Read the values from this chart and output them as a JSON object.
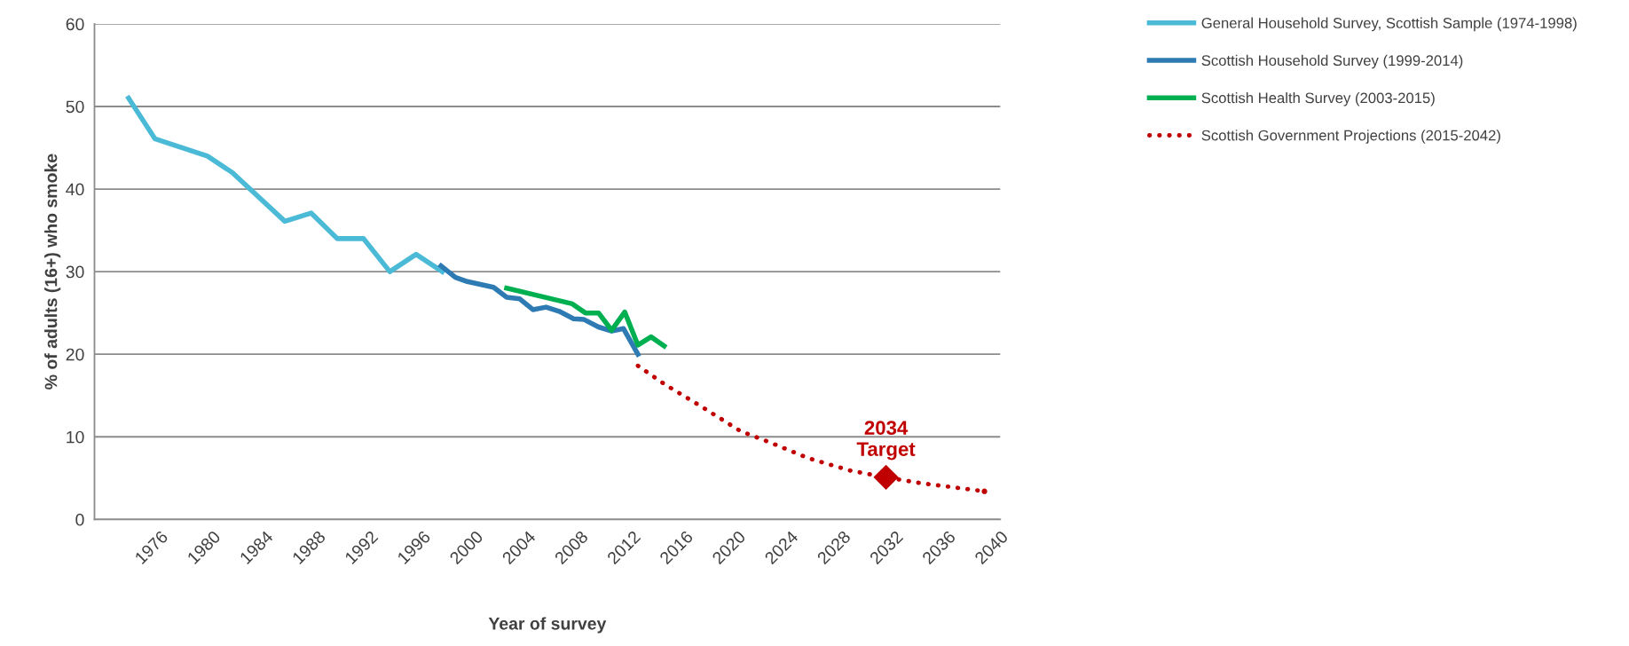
{
  "chart_data": {
    "type": "line",
    "xlabel": "Year of survey",
    "ylabel": "% of adults (16+) who smoke",
    "xlim": [
      1971,
      2040
    ],
    "xticks": [
      1976,
      1980,
      1984,
      1988,
      1992,
      1996,
      2000,
      2004,
      2008,
      2012,
      2016,
      2020,
      2024,
      2028,
      2032,
      2036,
      2040
    ],
    "ylim": [
      0,
      60
    ],
    "yticks": [
      0,
      10,
      20,
      30,
      40,
      50,
      60
    ],
    "grid": "y",
    "legend": "right",
    "marker": "none",
    "line_style": "solid",
    "series": [
      {
        "name": "General Household Survey, Scottish Sample (1974-1998)",
        "color": "#4bbad6",
        "x": [
          1973.6,
          1975.6,
          1979.6,
          1981.5,
          1985.5,
          1987.5,
          1989.5,
          1991.5,
          1993.5,
          1995.5,
          1997.5
        ],
        "values": [
          51.0,
          46.1,
          44.0,
          42.0,
          36.1,
          37.1,
          34.0,
          34.0,
          30.0,
          32.1,
          30.0
        ]
      },
      {
        "name": "Scottish Household Survey (1999-2014)",
        "color": "#2e7bb4",
        "x": [
          1997.4,
          1998.5,
          1999.4,
          2001.4,
          2002.4,
          2003.4,
          2004.4,
          2005.4,
          2006.4,
          2007.5,
          2008.3,
          2009.4,
          2010.4,
          2011.3,
          2012.4
        ],
        "values": [
          30.7,
          29.3,
          28.8,
          28.1,
          26.9,
          26.7,
          25.4,
          25.7,
          25.2,
          24.3,
          24.2,
          23.3,
          22.8,
          23.1,
          20.0
        ]
      },
      {
        "name": "Scottish Health Survey (2003-2015)",
        "color": "#00b050",
        "x": [
          2002.4,
          2007.4,
          2008.4,
          2009.4,
          2010.4,
          2011.4,
          2012.4,
          2013.4,
          2014.4
        ],
        "values": [
          28.0,
          26.1,
          25.0,
          25.0,
          22.9,
          25.1,
          21.1,
          22.1,
          21.0
        ]
      },
      {
        "name": "Scottish Government Projections (2015-2042)",
        "color": "#c00000",
        "line_style": "dotted",
        "x": [
          2012.4,
          2014.5,
          2017.3,
          2020.2,
          2022.5,
          2025.4,
          2028.6,
          2031.3,
          2033.9,
          2038.8
        ],
        "values": [
          18.6,
          16.3,
          13.6,
          10.7,
          9.3,
          7.4,
          5.9,
          5.1,
          4.4,
          3.4
        ]
      },
      {
        "type": "scatter",
        "marker": "diamond",
        "color": "#c00000",
        "x": [
          2031.3
        ],
        "values": [
          5.1
        ]
      }
    ],
    "annotations": [
      {
        "text": "2034\nTarget",
        "x": 2031.3,
        "y": 5.1
      }
    ]
  }
}
